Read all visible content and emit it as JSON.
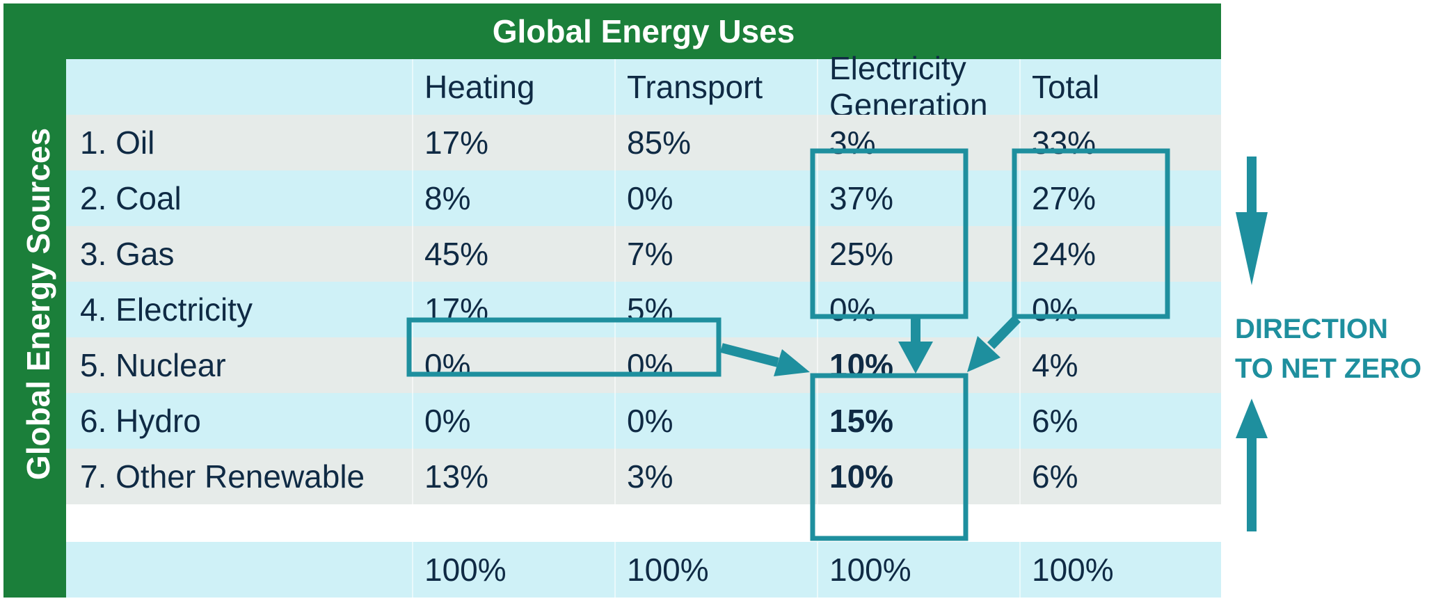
{
  "chart_data": {
    "type": "table",
    "title": "Global Energy Uses",
    "row_axis_label": "Global Energy Sources",
    "columns": [
      "",
      "Heating",
      "Transport",
      "Electricity Generation",
      "Total"
    ],
    "header": {
      "heating": "Heating",
      "transport": "Transport",
      "electricity_line1": "Electricity",
      "electricity_line2": "Generation",
      "total": "Total"
    },
    "rows": [
      {
        "source": "1. Oil",
        "heating": "17%",
        "transport": "85%",
        "electricity": "3%",
        "total": "33%"
      },
      {
        "source": "2. Coal",
        "heating": "8%",
        "transport": "0%",
        "electricity": "37%",
        "total": "27%"
      },
      {
        "source": "3. Gas",
        "heating": "45%",
        "transport": "7%",
        "electricity": "25%",
        "total": "24%"
      },
      {
        "source": "4. Electricity",
        "heating": "17%",
        "transport": "5%",
        "electricity": "0%",
        "total": "0%"
      },
      {
        "source": "5. Nuclear",
        "heating": "0%",
        "transport": "0%",
        "electricity": "10%",
        "total": "4%"
      },
      {
        "source": "6. Hydro",
        "heating": "0%",
        "transport": "0%",
        "electricity": "15%",
        "total": "6%"
      },
      {
        "source": "7. Other Renewable",
        "heating": "13%",
        "transport": "3%",
        "electricity": "10%",
        "total": "6%"
      }
    ],
    "totals": {
      "heating": "100%",
      "transport": "100%",
      "electricity": "100%",
      "total": "100%"
    },
    "annotation_line1": "DIRECTION",
    "annotation_line2": "TO NET ZERO"
  },
  "colors": {
    "header_green": "#1b7f3a",
    "row_light": "#cff1f7",
    "row_grey": "#e6ebe9",
    "text": "#0f2a44",
    "highlight_teal": "#1e8f9e"
  }
}
